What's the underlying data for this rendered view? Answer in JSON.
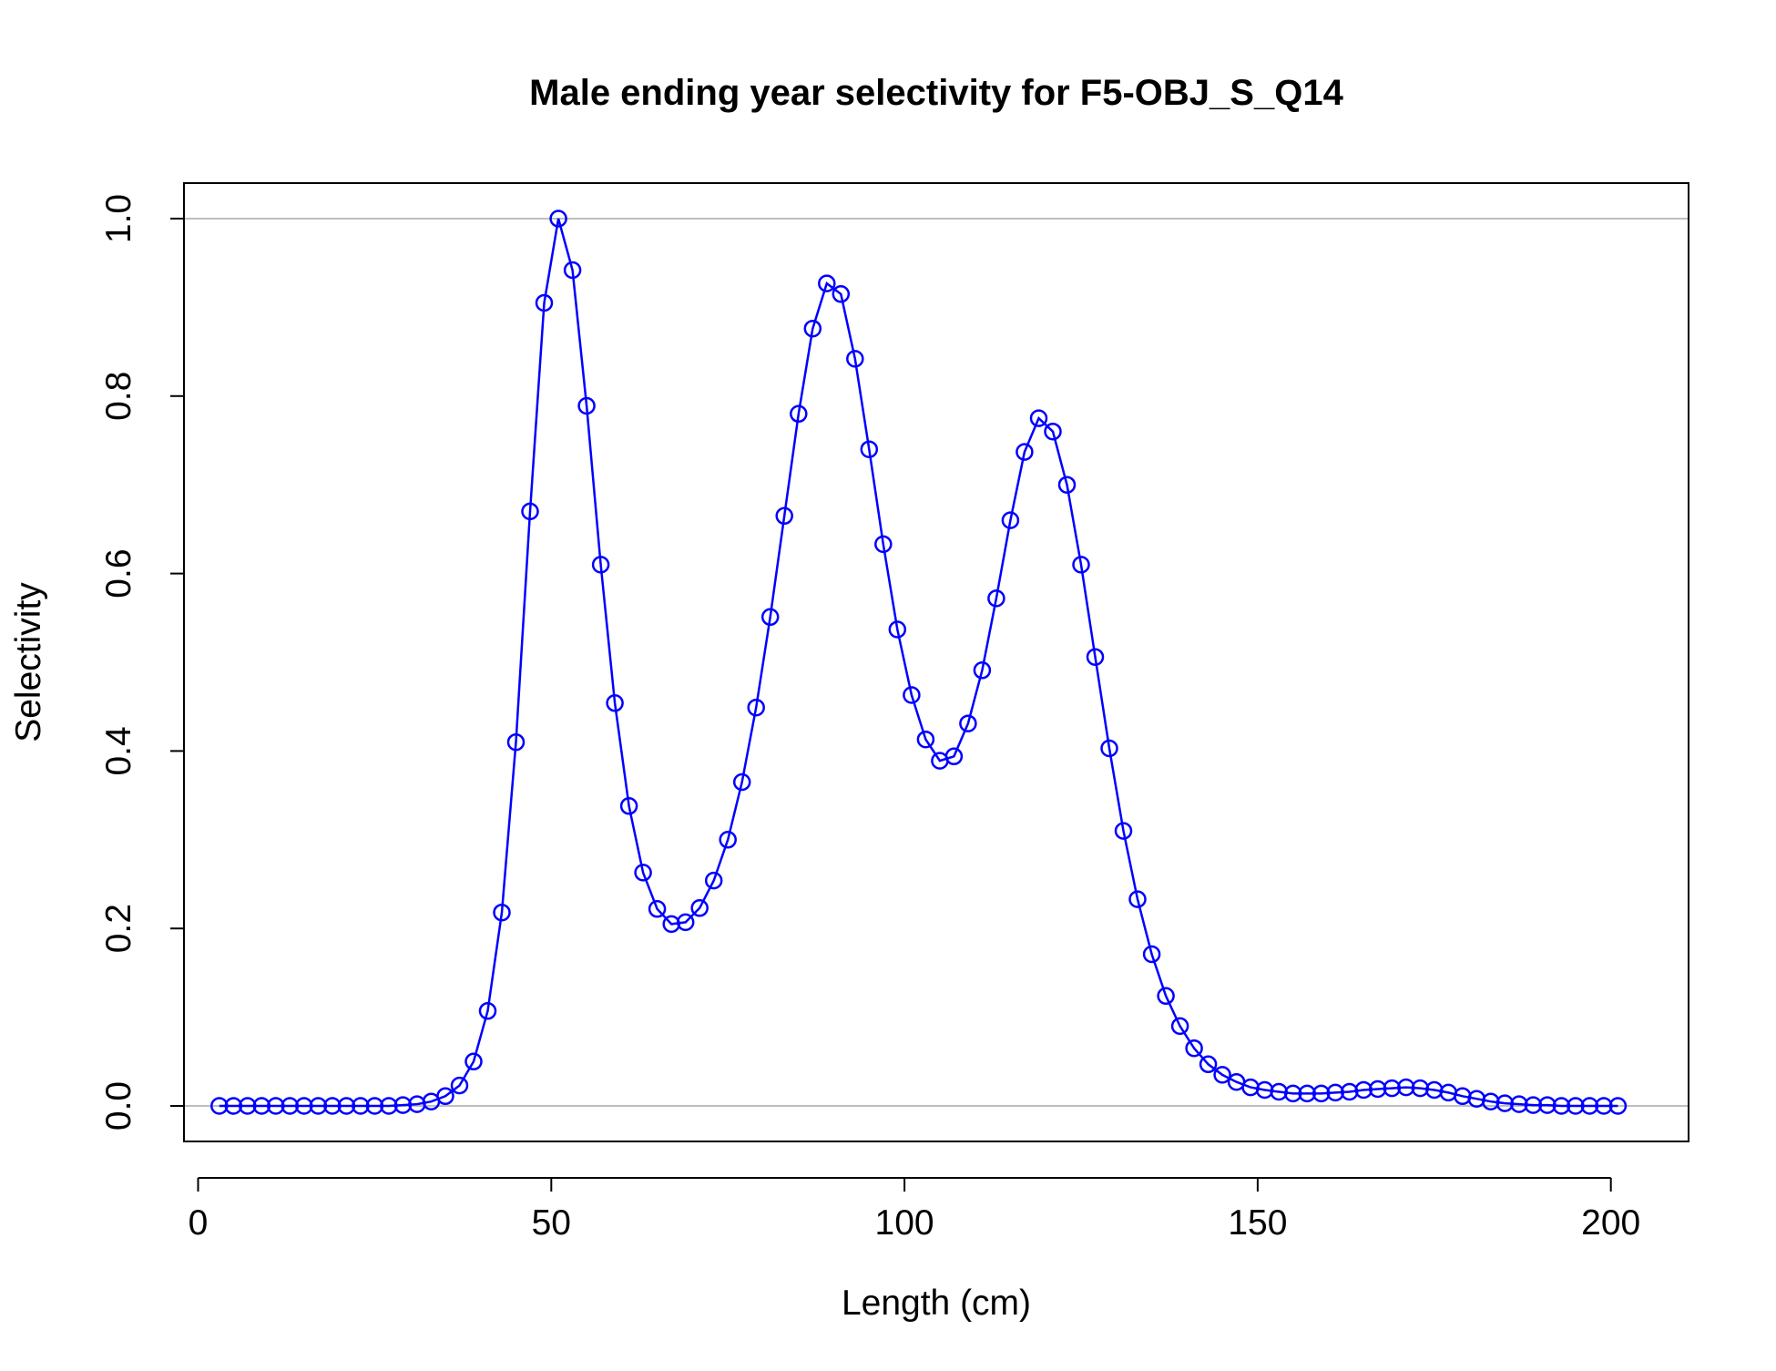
{
  "chart_data": {
    "type": "line",
    "title": "Male ending year selectivity for F5-OBJ_S_Q14",
    "xlabel": "Length (cm)",
    "ylabel": "Selectivity",
    "xlim": [
      -2,
      211
    ],
    "ylim": [
      -0.04,
      1.04
    ],
    "xticks": [
      0,
      50,
      100,
      150,
      200
    ],
    "xtick_labels": [
      "0",
      "50",
      "100",
      "150",
      "200"
    ],
    "yticks": [
      0,
      0.2,
      0.4,
      0.6,
      0.8,
      1.0
    ],
    "ytick_labels": [
      "0.0",
      "0.2",
      "0.4",
      "0.6",
      "0.8",
      "1.0"
    ],
    "reference_lines_y": [
      0,
      1
    ],
    "grid": false,
    "marker": "open-circle",
    "colors": {
      "series": "#0000ff",
      "reference_lines": "#bebebe",
      "axes": "#000000"
    },
    "series": [
      {
        "x": [
          3,
          5,
          7,
          9,
          11,
          13,
          15,
          17,
          19,
          21,
          23,
          25,
          27,
          29,
          31,
          33,
          35,
          37,
          39,
          41,
          43,
          45,
          47,
          49,
          51,
          53,
          55,
          57,
          59,
          61,
          63,
          65,
          67,
          69,
          71,
          73,
          75,
          77,
          79,
          81,
          83,
          85,
          87,
          89,
          91,
          93,
          95,
          97,
          99,
          101,
          103,
          105,
          107,
          109,
          111,
          113,
          115,
          117,
          119,
          121,
          123,
          125,
          127,
          129,
          131,
          133,
          135,
          137,
          139,
          141,
          143,
          145,
          147,
          149,
          151,
          153,
          155,
          157,
          159,
          161,
          163,
          165,
          167,
          169,
          171,
          173,
          175,
          177,
          179,
          181,
          183,
          185,
          187,
          189,
          191,
          193,
          195,
          197,
          199,
          201
        ],
        "y": [
          0,
          0,
          0,
          0,
          0,
          0,
          0,
          0,
          0,
          0,
          0,
          0,
          0,
          0.001,
          0.002,
          0.005,
          0.011,
          0.023,
          0.05,
          0.107,
          0.218,
          0.41,
          0.67,
          0.905,
          1.0,
          0.942,
          0.789,
          0.61,
          0.454,
          0.338,
          0.263,
          0.222,
          0.205,
          0.207,
          0.223,
          0.254,
          0.3,
          0.365,
          0.449,
          0.551,
          0.665,
          0.78,
          0.876,
          0.927,
          0.915,
          0.842,
          0.74,
          0.633,
          0.537,
          0.463,
          0.413,
          0.389,
          0.394,
          0.431,
          0.491,
          0.572,
          0.66,
          0.737,
          0.775,
          0.76,
          0.7,
          0.61,
          0.506,
          0.403,
          0.31,
          0.233,
          0.171,
          0.124,
          0.09,
          0.065,
          0.047,
          0.035,
          0.027,
          0.021,
          0.018,
          0.016,
          0.014,
          0.014,
          0.014,
          0.015,
          0.016,
          0.018,
          0.019,
          0.02,
          0.021,
          0.02,
          0.018,
          0.015,
          0.011,
          0.008,
          0.005,
          0.003,
          0.002,
          0.001,
          0.001,
          0,
          0,
          0,
          0,
          0
        ]
      }
    ]
  }
}
